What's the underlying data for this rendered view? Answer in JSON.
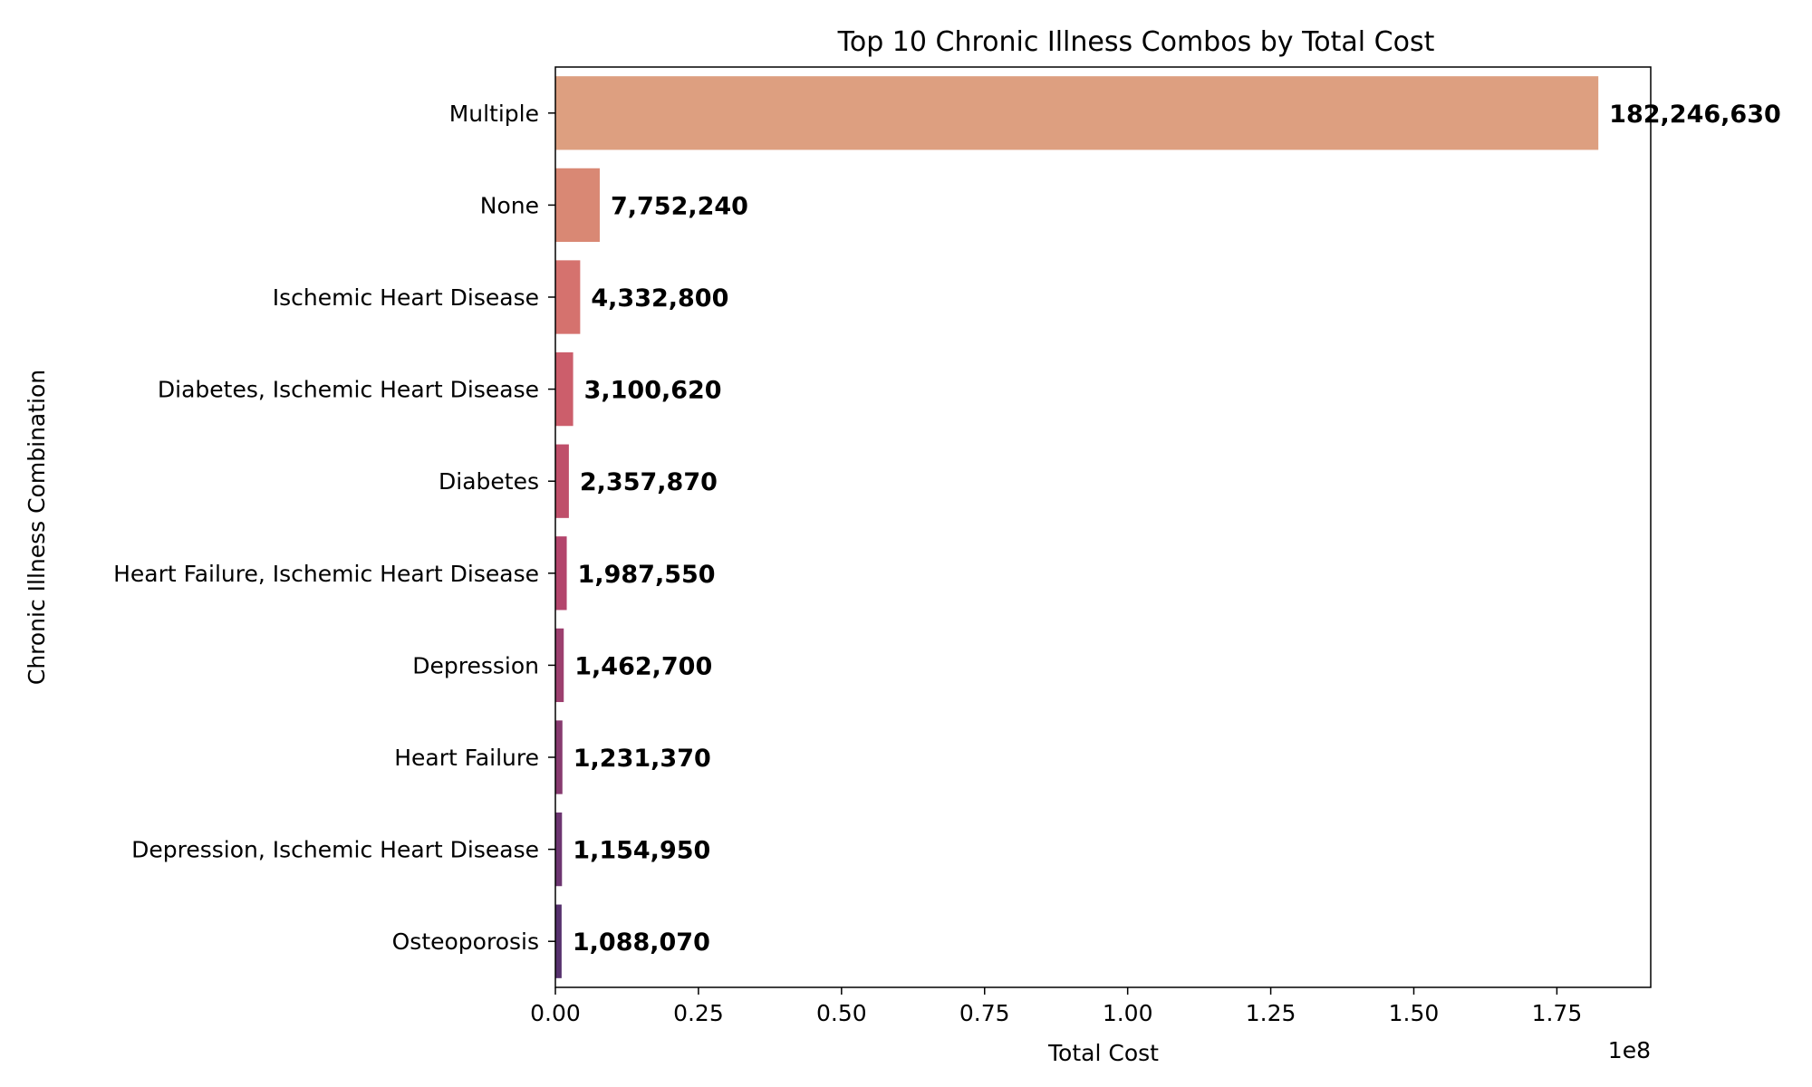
{
  "chart_data": {
    "type": "bar",
    "orientation": "horizontal",
    "title": "Top 10 Chronic Illness Combos by Total Cost",
    "xlabel": "Total Cost",
    "ylabel": "Chronic Illness Combination",
    "x_offset_text": "1e8",
    "xlim": [
      0,
      191400000
    ],
    "x_ticks": [
      0,
      25000000,
      50000000,
      75000000,
      100000000,
      125000000,
      150000000,
      175000000
    ],
    "x_tick_labels": [
      "0.00",
      "0.25",
      "0.50",
      "0.75",
      "1.00",
      "1.25",
      "1.50",
      "1.75"
    ],
    "categories": [
      "Multiple",
      "None",
      "Ischemic Heart Disease",
      "Diabetes, Ischemic Heart Disease",
      "Diabetes",
      "Heart Failure, Ischemic Heart Disease",
      "Depression",
      "Heart Failure",
      "Depression, Ischemic Heart Disease",
      "Osteoporosis"
    ],
    "values": [
      182246630,
      7752240,
      4332800,
      3100620,
      2357870,
      1987550,
      1462700,
      1231370,
      1154950,
      1088070
    ],
    "value_labels": [
      "182,246,630",
      "7,752,240",
      "4,332,800",
      "3,100,620",
      "2,357,870",
      "1,987,550",
      "1,462,700",
      "1,231,370",
      "1,154,950",
      "1,088,070"
    ],
    "colors": [
      "#dd9f80",
      "#d98874",
      "#d5726e",
      "#cc5e6b",
      "#bf4f6a",
      "#b3456c",
      "#9c3f6e",
      "#873a6f",
      "#6c3570",
      "#56316d"
    ],
    "grid": false,
    "legend": "none"
  }
}
